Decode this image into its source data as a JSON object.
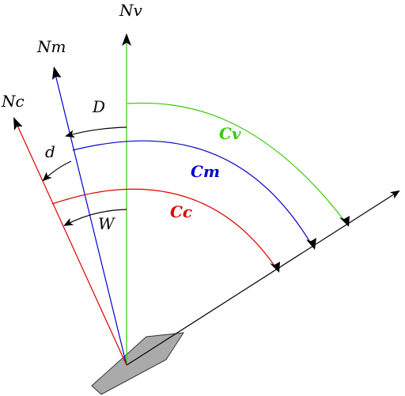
{
  "labels": {
    "true_north": "Nv",
    "magnetic_north": "Nm",
    "compass_north": "Nc",
    "declination": "D",
    "deviation": "d",
    "variation": "W",
    "true_course": "Cv",
    "magnetic_course": "Cm",
    "compass_course": "Cc"
  },
  "colors": {
    "true": "#33cc00",
    "magnetic": "#0000cc",
    "compass": "#dd0000",
    "ink": "#000000",
    "boat_fill": "#aaaaaa",
    "boat_stroke": "#333333"
  }
}
